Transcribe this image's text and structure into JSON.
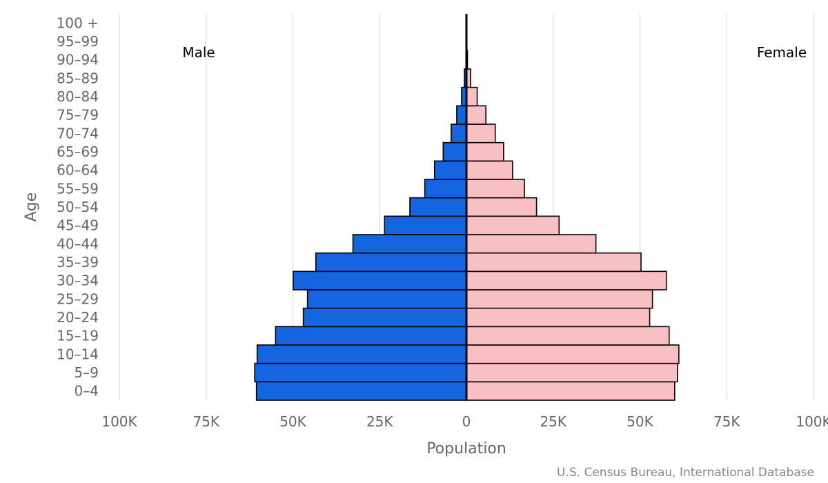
{
  "chart_data": {
    "type": "bar",
    "orientation": "horizontal",
    "title": "",
    "xlabel": "Population",
    "ylabel": "Age",
    "categories": [
      "0-4",
      "5-9",
      "10-14",
      "15-19",
      "20-24",
      "25-29",
      "30-34",
      "35-39",
      "40-44",
      "45-49",
      "50-54",
      "55-59",
      "60-64",
      "65-69",
      "70-74",
      "75-79",
      "80-84",
      "85-89",
      "90-94",
      "95-99",
      "100 +"
    ],
    "series": [
      {
        "name": "Male",
        "side": "left",
        "color": "#1565e0",
        "values": [
          60500,
          61000,
          60300,
          55000,
          47000,
          45800,
          49900,
          43400,
          32700,
          23600,
          16300,
          12000,
          9200,
          6700,
          4400,
          2800,
          1400,
          600,
          150,
          50,
          10
        ]
      },
      {
        "name": "Female",
        "side": "right",
        "color": "#f9c0c3",
        "values": [
          60000,
          60800,
          61200,
          58400,
          52800,
          53600,
          57600,
          50300,
          37300,
          26700,
          20200,
          16700,
          13300,
          10700,
          8300,
          5600,
          3100,
          1200,
          300,
          100,
          20
        ]
      }
    ],
    "x_ticks": [
      "100K",
      "75K",
      "50K",
      "25K",
      "0",
      "25K",
      "50K",
      "75K",
      "100K"
    ],
    "xlim": [
      -100000,
      100000
    ],
    "grid": true,
    "legend": {
      "left_label": "Male",
      "right_label": "Female"
    }
  },
  "credits": "U.S. Census Bureau, International Database"
}
